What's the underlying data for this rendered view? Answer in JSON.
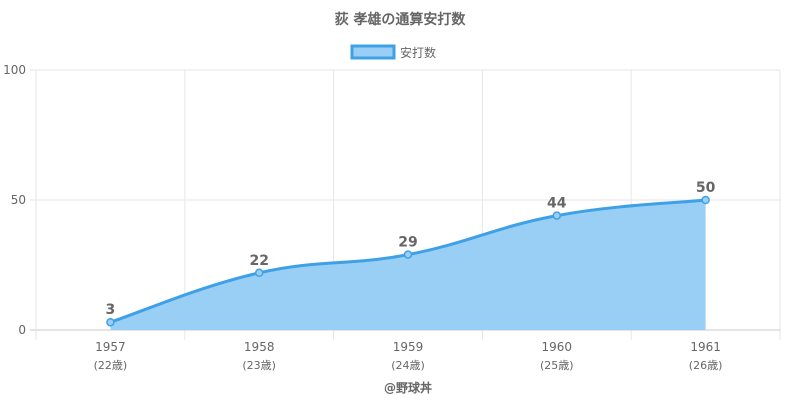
{
  "chart_data": {
    "type": "area",
    "title": "荻 孝雄の通算安打数",
    "series": [
      {
        "name": "安打数",
        "values": [
          3,
          22,
          29,
          44,
          50
        ]
      }
    ],
    "categories": [
      "1957",
      "1958",
      "1959",
      "1960",
      "1961"
    ],
    "age_labels": [
      "(22歳)",
      "(23歳)",
      "(24歳)",
      "(25歳)",
      "(26歳)"
    ],
    "ylim": [
      0,
      100
    ],
    "yticks": [
      0,
      50,
      100
    ],
    "grid": true,
    "legend_position": "top",
    "credit": "@野球丼",
    "colors": {
      "line": "#3fa0e6",
      "fill": "#99cff5",
      "grid": "#e6e6e6",
      "axis": "#c8c8c8",
      "text": "#666666"
    }
  }
}
